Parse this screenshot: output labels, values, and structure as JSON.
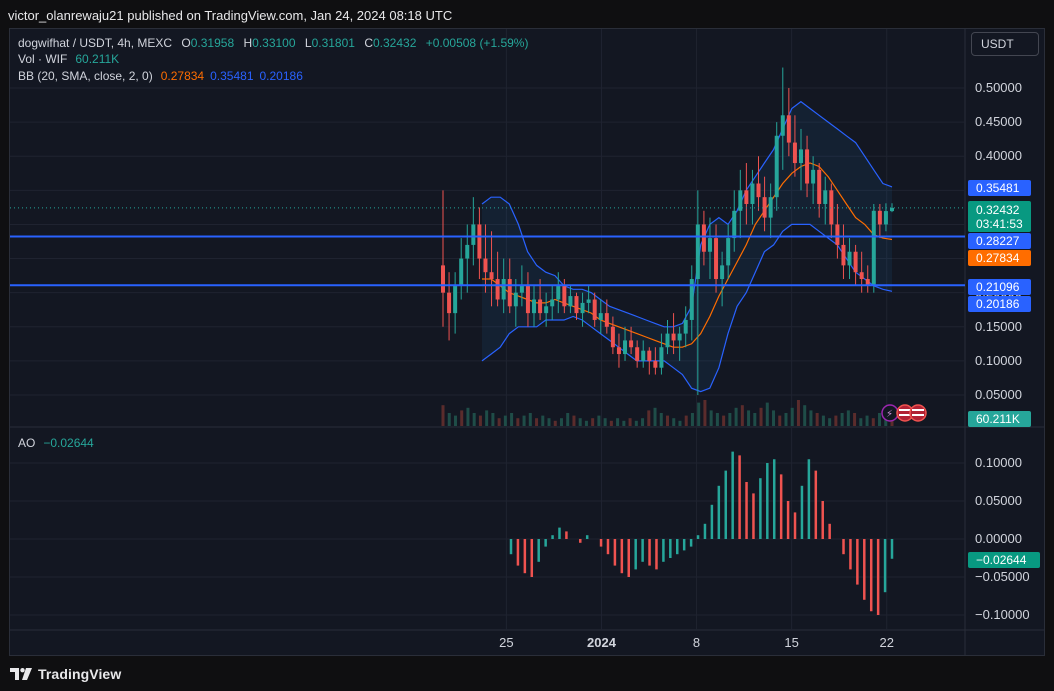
{
  "publish_line": "victor_olanrewaju21 published on TradingView.com, Jan 24, 2024 08:18 UTC",
  "brand": "TradingView",
  "currency_button": "USDT",
  "legend": {
    "symbol": "dogwifhat / USDT, 4h, MEXC",
    "o_label": "O",
    "o": "0.31958",
    "h_label": "H",
    "h": "0.33100",
    "l_label": "L",
    "l": "0.31801",
    "c_label": "C",
    "c": "0.32432",
    "change": "+0.00508 (+1.59%)",
    "vol_label": "Vol · WIF",
    "vol": "60.211K",
    "bb_label": "BB (20, SMA, close, 2, 0)",
    "bb_mid": "0.27834",
    "bb_upper": "0.35481",
    "bb_lower": "0.20186",
    "ao_label": "AO",
    "ao": "−0.02644"
  },
  "colors": {
    "up": "#26a69a",
    "down": "#ef5350",
    "bb_basis": "#ff6d00",
    "bb_band": "#2962ff",
    "hline": "#2962ff",
    "grid": "#1f2330",
    "axis_text": "#d1d4dc",
    "bg": "#131722"
  },
  "price_badges": {
    "bb_upper": "0.35481",
    "last": "0.32432",
    "countdown": "03:41:53",
    "hline1": "0.28227",
    "bb_basis": "0.27834",
    "hline2": "0.21096",
    "bb_lower": "0.20186",
    "volume": "60.211K",
    "ao": "−0.02644"
  },
  "chart_data": {
    "type": "candlestick",
    "price_axis": {
      "ticks": [
        "0.50000",
        "0.45000",
        "0.40000",
        "0.35000",
        "0.30000",
        "0.25000",
        "0.20000",
        "0.15000",
        "0.10000",
        "0.05000"
      ],
      "tick_values": [
        0.5,
        0.45,
        0.4,
        0.35,
        0.3,
        0.25,
        0.2,
        0.15,
        0.1,
        0.05
      ]
    },
    "ao_axis": {
      "ticks": [
        "0.10000",
        "0.05000",
        "0.00000",
        "−0.05000",
        "−0.10000"
      ],
      "tick_values": [
        0.1,
        0.05,
        0,
        -0.05,
        -0.1
      ]
    },
    "time_axis": {
      "labels": [
        "25",
        "2024",
        "8",
        "15",
        "22"
      ],
      "bar_index": [
        12,
        30,
        48,
        66,
        84
      ]
    },
    "horizontal_lines": [
      0.28227,
      0.21096
    ],
    "bar_count": 86,
    "candles": [
      {
        "o": 0.24,
        "h": 0.35,
        "l": 0.15,
        "c": 0.2
      },
      {
        "o": 0.2,
        "h": 0.23,
        "l": 0.13,
        "c": 0.17
      },
      {
        "o": 0.17,
        "h": 0.23,
        "l": 0.14,
        "c": 0.21
      },
      {
        "o": 0.21,
        "h": 0.28,
        "l": 0.19,
        "c": 0.25
      },
      {
        "o": 0.25,
        "h": 0.3,
        "l": 0.2,
        "c": 0.27
      },
      {
        "o": 0.27,
        "h": 0.34,
        "l": 0.24,
        "c": 0.3
      },
      {
        "o": 0.3,
        "h": 0.325,
        "l": 0.22,
        "c": 0.25
      },
      {
        "o": 0.25,
        "h": 0.3,
        "l": 0.2,
        "c": 0.23
      },
      {
        "o": 0.23,
        "h": 0.29,
        "l": 0.18,
        "c": 0.22
      },
      {
        "o": 0.22,
        "h": 0.26,
        "l": 0.18,
        "c": 0.19
      },
      {
        "o": 0.19,
        "h": 0.25,
        "l": 0.17,
        "c": 0.22
      },
      {
        "o": 0.22,
        "h": 0.25,
        "l": 0.17,
        "c": 0.18
      },
      {
        "o": 0.18,
        "h": 0.22,
        "l": 0.15,
        "c": 0.2
      },
      {
        "o": 0.2,
        "h": 0.24,
        "l": 0.18,
        "c": 0.21
      },
      {
        "o": 0.21,
        "h": 0.23,
        "l": 0.15,
        "c": 0.17
      },
      {
        "o": 0.17,
        "h": 0.21,
        "l": 0.15,
        "c": 0.19
      },
      {
        "o": 0.19,
        "h": 0.22,
        "l": 0.16,
        "c": 0.17
      },
      {
        "o": 0.17,
        "h": 0.2,
        "l": 0.15,
        "c": 0.18
      },
      {
        "o": 0.18,
        "h": 0.21,
        "l": 0.16,
        "c": 0.19
      },
      {
        "o": 0.19,
        "h": 0.23,
        "l": 0.17,
        "c": 0.21
      },
      {
        "o": 0.21,
        "h": 0.22,
        "l": 0.17,
        "c": 0.18
      },
      {
        "o": 0.18,
        "h": 0.21,
        "l": 0.17,
        "c": 0.195
      },
      {
        "o": 0.195,
        "h": 0.2,
        "l": 0.16,
        "c": 0.17
      },
      {
        "o": 0.17,
        "h": 0.2,
        "l": 0.15,
        "c": 0.185
      },
      {
        "o": 0.185,
        "h": 0.21,
        "l": 0.17,
        "c": 0.19
      },
      {
        "o": 0.19,
        "h": 0.2,
        "l": 0.15,
        "c": 0.16
      },
      {
        "o": 0.16,
        "h": 0.19,
        "l": 0.14,
        "c": 0.17
      },
      {
        "o": 0.17,
        "h": 0.19,
        "l": 0.14,
        "c": 0.15
      },
      {
        "o": 0.15,
        "h": 0.165,
        "l": 0.11,
        "c": 0.12
      },
      {
        "o": 0.12,
        "h": 0.14,
        "l": 0.09,
        "c": 0.11
      },
      {
        "o": 0.11,
        "h": 0.15,
        "l": 0.1,
        "c": 0.13
      },
      {
        "o": 0.13,
        "h": 0.15,
        "l": 0.11,
        "c": 0.12
      },
      {
        "o": 0.12,
        "h": 0.13,
        "l": 0.09,
        "c": 0.1
      },
      {
        "o": 0.1,
        "h": 0.13,
        "l": 0.09,
        "c": 0.115
      },
      {
        "o": 0.115,
        "h": 0.12,
        "l": 0.08,
        "c": 0.1
      },
      {
        "o": 0.1,
        "h": 0.12,
        "l": 0.08,
        "c": 0.09
      },
      {
        "o": 0.09,
        "h": 0.14,
        "l": 0.08,
        "c": 0.12
      },
      {
        "o": 0.12,
        "h": 0.16,
        "l": 0.11,
        "c": 0.14
      },
      {
        "o": 0.14,
        "h": 0.17,
        "l": 0.11,
        "c": 0.13
      },
      {
        "o": 0.13,
        "h": 0.15,
        "l": 0.1,
        "c": 0.14
      },
      {
        "o": 0.14,
        "h": 0.18,
        "l": 0.12,
        "c": 0.16
      },
      {
        "o": 0.16,
        "h": 0.24,
        "l": 0.13,
        "c": 0.22
      },
      {
        "o": 0.22,
        "h": 0.35,
        "l": 0.05,
        "c": 0.3
      },
      {
        "o": 0.3,
        "h": 0.32,
        "l": 0.24,
        "c": 0.26
      },
      {
        "o": 0.26,
        "h": 0.31,
        "l": 0.22,
        "c": 0.28
      },
      {
        "o": 0.28,
        "h": 0.3,
        "l": 0.2,
        "c": 0.22
      },
      {
        "o": 0.22,
        "h": 0.26,
        "l": 0.18,
        "c": 0.24
      },
      {
        "o": 0.24,
        "h": 0.3,
        "l": 0.22,
        "c": 0.28
      },
      {
        "o": 0.28,
        "h": 0.35,
        "l": 0.26,
        "c": 0.32
      },
      {
        "o": 0.32,
        "h": 0.38,
        "l": 0.28,
        "c": 0.35
      },
      {
        "o": 0.35,
        "h": 0.39,
        "l": 0.3,
        "c": 0.33
      },
      {
        "o": 0.33,
        "h": 0.38,
        "l": 0.3,
        "c": 0.36
      },
      {
        "o": 0.36,
        "h": 0.4,
        "l": 0.32,
        "c": 0.34
      },
      {
        "o": 0.34,
        "h": 0.37,
        "l": 0.29,
        "c": 0.31
      },
      {
        "o": 0.31,
        "h": 0.36,
        "l": 0.28,
        "c": 0.34
      },
      {
        "o": 0.34,
        "h": 0.45,
        "l": 0.32,
        "c": 0.43
      },
      {
        "o": 0.43,
        "h": 0.53,
        "l": 0.38,
        "c": 0.46
      },
      {
        "o": 0.46,
        "h": 0.5,
        "l": 0.4,
        "c": 0.42
      },
      {
        "o": 0.42,
        "h": 0.46,
        "l": 0.37,
        "c": 0.39
      },
      {
        "o": 0.39,
        "h": 0.44,
        "l": 0.35,
        "c": 0.41
      },
      {
        "o": 0.41,
        "h": 0.43,
        "l": 0.34,
        "c": 0.36
      },
      {
        "o": 0.36,
        "h": 0.4,
        "l": 0.33,
        "c": 0.38
      },
      {
        "o": 0.38,
        "h": 0.39,
        "l": 0.31,
        "c": 0.33
      },
      {
        "o": 0.33,
        "h": 0.37,
        "l": 0.3,
        "c": 0.35
      },
      {
        "o": 0.35,
        "h": 0.36,
        "l": 0.28,
        "c": 0.3
      },
      {
        "o": 0.3,
        "h": 0.33,
        "l": 0.25,
        "c": 0.27
      },
      {
        "o": 0.27,
        "h": 0.3,
        "l": 0.22,
        "c": 0.24
      },
      {
        "o": 0.24,
        "h": 0.28,
        "l": 0.22,
        "c": 0.26
      },
      {
        "o": 0.26,
        "h": 0.27,
        "l": 0.21,
        "c": 0.23
      },
      {
        "o": 0.23,
        "h": 0.26,
        "l": 0.2,
        "c": 0.22
      },
      {
        "o": 0.22,
        "h": 0.24,
        "l": 0.2,
        "c": 0.21
      },
      {
        "o": 0.21,
        "h": 0.33,
        "l": 0.2,
        "c": 0.32
      },
      {
        "o": 0.32,
        "h": 0.33,
        "l": 0.28,
        "c": 0.3
      },
      {
        "o": 0.3,
        "h": 0.331,
        "l": 0.29,
        "c": 0.3196
      },
      {
        "o": 0.31958,
        "h": 0.331,
        "l": 0.31801,
        "c": 0.32432
      }
    ],
    "bb_upper_series": [
      0.33,
      0.34,
      0.34,
      0.33,
      0.3,
      0.26,
      0.24,
      0.23,
      0.225,
      0.21,
      0.205,
      0.205,
      0.2,
      0.19,
      0.18,
      0.175,
      0.17,
      0.165,
      0.16,
      0.155,
      0.15,
      0.15,
      0.155,
      0.18,
      0.27,
      0.3,
      0.31,
      0.3,
      0.32,
      0.35,
      0.37,
      0.39,
      0.41,
      0.44,
      0.47,
      0.48,
      0.47,
      0.46,
      0.45,
      0.44,
      0.43,
      0.42,
      0.4,
      0.38,
      0.36,
      0.355
    ],
    "bb_lower_series": [
      0.1,
      0.11,
      0.12,
      0.14,
      0.15,
      0.15,
      0.15,
      0.16,
      0.16,
      0.16,
      0.165,
      0.16,
      0.15,
      0.14,
      0.13,
      0.12,
      0.11,
      0.1,
      0.1,
      0.1,
      0.1,
      0.09,
      0.08,
      0.06,
      0.055,
      0.06,
      0.09,
      0.14,
      0.18,
      0.2,
      0.23,
      0.26,
      0.27,
      0.29,
      0.3,
      0.3,
      0.3,
      0.29,
      0.28,
      0.27,
      0.25,
      0.23,
      0.22,
      0.21,
      0.205,
      0.202
    ],
    "bb_basis_series": [
      0.22,
      0.22,
      0.21,
      0.2,
      0.195,
      0.19,
      0.185,
      0.185,
      0.19,
      0.185,
      0.18,
      0.175,
      0.17,
      0.16,
      0.155,
      0.15,
      0.145,
      0.14,
      0.135,
      0.13,
      0.125,
      0.12,
      0.12,
      0.125,
      0.14,
      0.165,
      0.195,
      0.22,
      0.245,
      0.27,
      0.3,
      0.32,
      0.34,
      0.36,
      0.375,
      0.385,
      0.39,
      0.385,
      0.37,
      0.35,
      0.33,
      0.31,
      0.3,
      0.285,
      0.28,
      0.278
    ],
    "ao_values": [
      -0.02,
      -0.035,
      -0.045,
      -0.05,
      -0.03,
      -0.01,
      0.005,
      0.015,
      0.01,
      0.0,
      -0.005,
      0.005,
      0.0,
      -0.01,
      -0.02,
      -0.035,
      -0.045,
      -0.05,
      -0.04,
      -0.03,
      -0.035,
      -0.04,
      -0.03,
      -0.025,
      -0.02,
      -0.015,
      -0.01,
      0.005,
      0.02,
      0.045,
      0.07,
      0.09,
      0.115,
      0.11,
      0.075,
      0.06,
      0.08,
      0.1,
      0.105,
      0.085,
      0.05,
      0.035,
      0.07,
      0.105,
      0.09,
      0.05,
      0.02,
      0.0,
      -0.02,
      -0.04,
      -0.06,
      -0.08,
      -0.095,
      -0.1,
      -0.07,
      -0.026
    ],
    "volume_relative": [
      0.8,
      0.5,
      0.4,
      0.6,
      0.7,
      0.5,
      0.4,
      0.6,
      0.5,
      0.3,
      0.4,
      0.5,
      0.3,
      0.4,
      0.5,
      0.3,
      0.4,
      0.3,
      0.2,
      0.3,
      0.5,
      0.4,
      0.3,
      0.2,
      0.3,
      0.4,
      0.3,
      0.2,
      0.3,
      0.2,
      0.3,
      0.2,
      0.3,
      0.6,
      0.7,
      0.5,
      0.4,
      0.3,
      0.2,
      0.4,
      0.5,
      0.9,
      1.0,
      0.6,
      0.5,
      0.4,
      0.5,
      0.7,
      0.8,
      0.6,
      0.5,
      0.7,
      0.9,
      0.6,
      0.4,
      0.5,
      0.7,
      1.0,
      0.8,
      0.6,
      0.5,
      0.4,
      0.3,
      0.4,
      0.5,
      0.6,
      0.5,
      0.3,
      0.4,
      0.3,
      0.5,
      0.6,
      0.4
    ]
  }
}
